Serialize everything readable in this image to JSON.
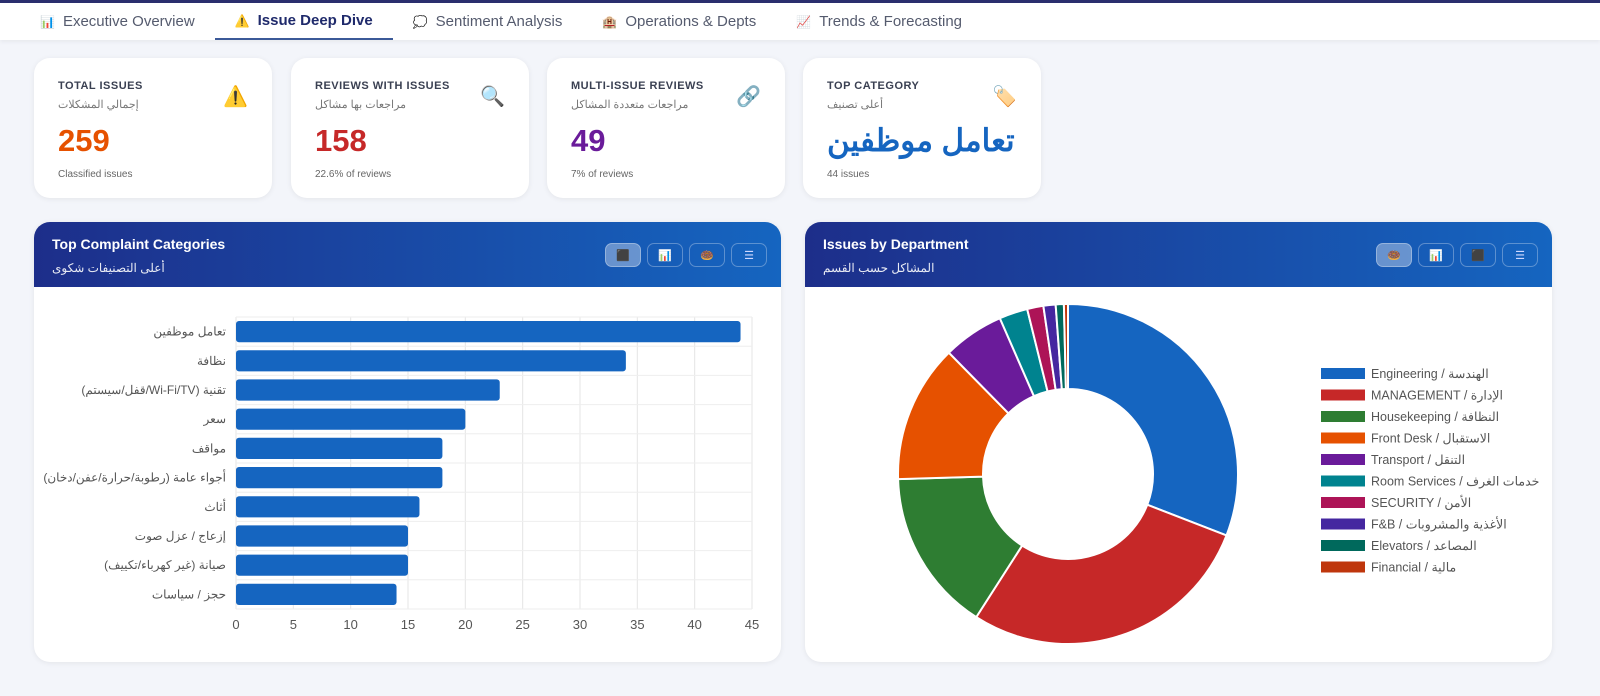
{
  "tabs": [
    {
      "icon": "📊",
      "label": "Executive Overview"
    },
    {
      "icon": "⚠️",
      "label": "Issue Deep Dive",
      "active": true
    },
    {
      "icon": "💭",
      "label": "Sentiment Analysis"
    },
    {
      "icon": "🏨",
      "label": "Operations & Depts"
    },
    {
      "icon": "📈",
      "label": "Trends & Forecasting"
    }
  ],
  "kpis": [
    {
      "title": "TOTAL ISSUES",
      "arabic": "إجمالي المشكلات",
      "value": "259",
      "sub": "Classified issues",
      "icon": "⚠️",
      "color": "#e65100"
    },
    {
      "title": "REVIEWS WITH ISSUES",
      "arabic": "مراجعات بها مشاكل",
      "value": "158",
      "sub": "22.6% of reviews",
      "icon": "🔍",
      "color": "#c62828"
    },
    {
      "title": "MULTI-ISSUE REVIEWS",
      "arabic": "مراجعات متعددة المشاكل",
      "value": "49",
      "sub": "7% of reviews",
      "icon": "🔗",
      "color": "#6a1b9a"
    },
    {
      "title": "TOP CATEGORY",
      "arabic": "أعلى تصنيف",
      "value": "تعامل موظفين",
      "sub": "44 issues",
      "icon": "🏷️",
      "color": "#1565c0"
    }
  ],
  "panels": {
    "left": {
      "title": "Top Complaint Categories",
      "arabic": "أعلى التصنيفات شكوى",
      "buttons": [
        "⬛",
        "📊",
        "🍩",
        "☰"
      ]
    },
    "right": {
      "title": "Issues by Department",
      "arabic": "المشاكل حسب القسم",
      "buttons": [
        "🍩",
        "📊",
        "⬛",
        "☰"
      ]
    }
  },
  "chart_data": [
    {
      "type": "bar",
      "orientation": "horizontal",
      "categories": [
        "تعامل موظفين",
        "نظافة",
        "(قفل/سيستم/Wi-Fi/TV) تقنية",
        "سعر",
        "مواقف",
        "أجواء عامة (رطوبة/حرارة/عفن/دخان)",
        "أثاث",
        "إزعاج / عزل صوت",
        "صيانة (غير كهرباء/تكييف)",
        "حجز / سياسات"
      ],
      "values": [
        44,
        34,
        23,
        20,
        18,
        18,
        16,
        15,
        15,
        14
      ],
      "xlim": [
        0,
        45
      ],
      "ticks": [
        "0",
        "5",
        "10",
        "15",
        "20",
        "25",
        "30",
        "35",
        "40",
        "45"
      ],
      "grid": true,
      "color": "#1565c0"
    },
    {
      "type": "pie",
      "donut": true,
      "legend_position": "right",
      "labels": [
        "Engineering / الهندسة",
        "MANAGEMENT / الإدارة",
        "Housekeeping / النظافة",
        "Front Desk / الاستقبال",
        "Transport / التنقل",
        "Room Services / خدمات الغرف",
        "SECURITY / الأمن",
        "F&B / الأغذية والمشروبات",
        "Elevators / المصاعد",
        "Financial / مالية"
      ],
      "values": [
        80,
        73,
        40,
        34,
        15,
        7,
        4,
        3,
        2,
        1
      ],
      "colors": [
        "#1565c0",
        "#c62828",
        "#2e7d32",
        "#e65100",
        "#6a1b9a",
        "#00838f",
        "#ad1457",
        "#4527a0",
        "#00695c",
        "#bf360c"
      ]
    }
  ]
}
